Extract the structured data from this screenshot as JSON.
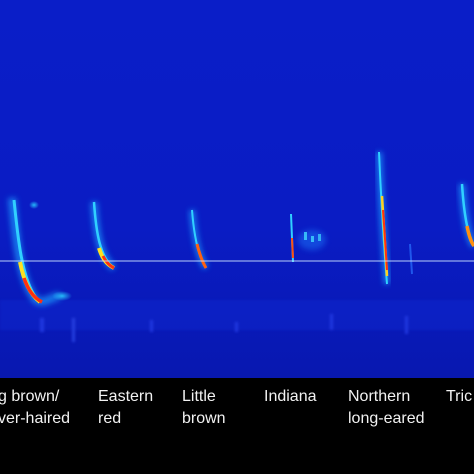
{
  "colors": {
    "background_blue": "#0a1ec8",
    "reference_line": "#cfe3ff",
    "label_text": "#f2f2f2",
    "label_band": "#000000"
  },
  "labels": [
    {
      "line1": "g brown/",
      "line2": "ver-haired"
    },
    {
      "line1": "Eastern",
      "line2": "red"
    },
    {
      "line1": "Little",
      "line2": "brown"
    },
    {
      "line1": "Indiana",
      "line2": ""
    },
    {
      "line1": "Northern",
      "line2": "long-eared"
    },
    {
      "line1": "Tric",
      "line2": ""
    }
  ]
}
